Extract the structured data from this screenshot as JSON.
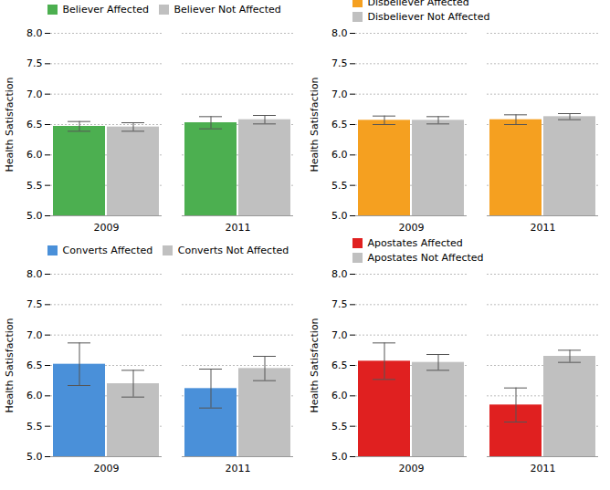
{
  "chart_data": [
    {
      "type": "bar",
      "ylabel": "Health Satisfaction",
      "categories": [
        "2009",
        "2011"
      ],
      "series": [
        {
          "name": "Believer Affected",
          "color": "#4CAF50",
          "values": [
            6.47,
            6.53
          ],
          "errors": [
            0.08,
            0.1
          ]
        },
        {
          "name": "Believer Not Affected",
          "color": "#C0C0C0",
          "values": [
            6.46,
            6.58
          ],
          "errors": [
            0.07,
            0.07
          ]
        }
      ],
      "ylim": [
        5.0,
        8.0
      ],
      "yticks": [
        {
          "value": 5.0,
          "label": "5.0"
        },
        5.5,
        {
          "value": 6.0,
          "label": "6.0"
        },
        6.5,
        {
          "value": 7.0,
          "label": "7.0"
        },
        7.5,
        {
          "value": 8.0,
          "label": "8.0"
        }
      ],
      "grid": true,
      "legend": "upper left"
    },
    {
      "type": "bar",
      "ylabel": "Health Satisfaction",
      "categories": [
        "2009",
        "2011"
      ],
      "series": [
        {
          "name": "Disbeliever Affected",
          "color": "#F5A020",
          "values": [
            6.57,
            6.58
          ],
          "errors": [
            0.07,
            0.08
          ]
        },
        {
          "name": "Disbeliever Not Affected",
          "color": "#C0C0C0",
          "values": [
            6.57,
            6.63
          ],
          "errors": [
            0.06,
            0.05
          ]
        }
      ],
      "ylim": [
        5.0,
        8.0
      ],
      "yticks": [
        {
          "value": 5.0,
          "label": "5.0"
        },
        5.5,
        {
          "value": 6.0,
          "label": "6.0"
        },
        6.5,
        {
          "value": 7.0,
          "label": "7.0"
        },
        7.5,
        {
          "value": 8.0,
          "label": "8.0"
        }
      ],
      "grid": true,
      "legend": "upper left"
    },
    {
      "type": "bar",
      "ylabel": "Health Satisfaction",
      "categories": [
        "2009",
        "2011"
      ],
      "series": [
        {
          "name": "Converts Affected",
          "color": "#4A90D9",
          "values": [
            6.52,
            6.12
          ],
          "errors": [
            0.35,
            0.32
          ]
        },
        {
          "name": "Converts Not Affected",
          "color": "#C0C0C0",
          "values": [
            6.2,
            6.45
          ],
          "errors": [
            0.22,
            0.2
          ]
        }
      ],
      "ylim": [
        5.0,
        8.0
      ],
      "yticks": [
        {
          "value": 5.0,
          "label": "5.0"
        },
        5.5,
        {
          "value": 6.0,
          "label": "6.0"
        },
        6.5,
        {
          "value": 7.0,
          "label": "7.0"
        },
        7.5,
        {
          "value": 8.0,
          "label": "8.0"
        }
      ],
      "grid": true,
      "legend": "upper left"
    },
    {
      "type": "bar",
      "ylabel": "Health Satisfaction",
      "categories": [
        "2009",
        "2011"
      ],
      "series": [
        {
          "name": "Apostates Affected",
          "color": "#E02020",
          "values": [
            6.57,
            5.85
          ],
          "errors": [
            0.3,
            0.28
          ]
        },
        {
          "name": "Apostates Not Affected",
          "color": "#C0C0C0",
          "values": [
            6.55,
            6.65
          ],
          "errors": [
            0.13,
            0.1
          ]
        }
      ],
      "ylim": [
        5.0,
        8.0
      ],
      "yticks": [
        {
          "value": 5.0,
          "label": "5.0"
        },
        5.5,
        {
          "value": 6.0,
          "label": "6.0"
        },
        6.5,
        {
          "value": 7.0,
          "label": "7.0"
        },
        7.5,
        {
          "value": 8.0,
          "label": "8.0"
        }
      ],
      "grid": true,
      "legend": "upper left"
    }
  ]
}
